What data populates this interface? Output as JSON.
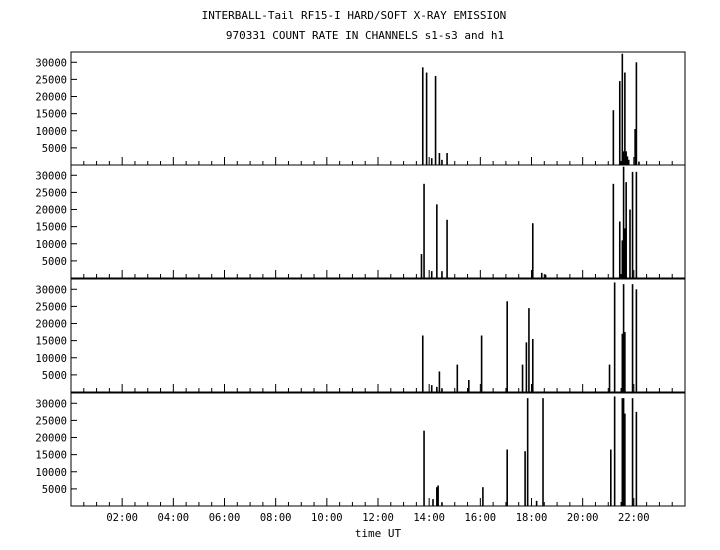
{
  "chart_data": {
    "type": "bar",
    "title": "INTERBALL-Tail RF15-I HARD/SOFT X-RAY EMISSION",
    "subtitle": "970331  COUNT RATE IN CHANNELS s1-s3 and h1",
    "xlabel": "time UT",
    "x_unit": "hours UT",
    "xlim": [
      0,
      24
    ],
    "ylim": [
      0,
      33000
    ],
    "x_ticks": [
      2,
      4,
      6,
      8,
      10,
      12,
      14,
      16,
      18,
      20,
      22
    ],
    "x_tick_labels": [
      "02:00",
      "04:00",
      "06:00",
      "08:00",
      "10:00",
      "12:00",
      "14:00",
      "16:00",
      "18:00",
      "20:00",
      "22:00"
    ],
    "y_ticks": [
      5000,
      10000,
      15000,
      20000,
      25000,
      30000
    ],
    "y_tick_labels": [
      "5000",
      "10000",
      "15000",
      "20000",
      "25000",
      "30000"
    ],
    "grid": false,
    "panels": [
      {
        "x": [
          13.75,
          13.9,
          14.1,
          14.25,
          14.4,
          14.5,
          14.7,
          21.2,
          21.45,
          21.55,
          21.6,
          21.65,
          21.7,
          21.75,
          21.8,
          22.05,
          22.1,
          22.2
        ],
        "values": [
          28500,
          27000,
          2000,
          26000,
          3500,
          1500,
          3500,
          16000,
          24500,
          32500,
          4000,
          27000,
          4000,
          2500,
          1500,
          10500,
          30000,
          1000
        ]
      },
      {
        "x": [
          13.7,
          13.8,
          14.1,
          14.3,
          14.5,
          14.7,
          18.05,
          18.4,
          18.55,
          21.2,
          21.45,
          21.55,
          21.6,
          21.65,
          21.7,
          21.85,
          21.95,
          22.1
        ],
        "values": [
          7000,
          27500,
          2000,
          21500,
          2000,
          17000,
          16000,
          1500,
          1000,
          27500,
          16500,
          11000,
          32500,
          14500,
          28000,
          20000,
          31000,
          31000
        ]
      },
      {
        "x": [
          13.75,
          14.1,
          14.3,
          14.4,
          14.5,
          15.1,
          15.55,
          16.05,
          17.05,
          17.65,
          17.8,
          17.9,
          18.05,
          21.05,
          21.25,
          21.55,
          21.6,
          21.65,
          21.95,
          22.1
        ],
        "values": [
          16500,
          2000,
          1500,
          6000,
          1000,
          8000,
          3500,
          16500,
          26500,
          8000,
          14500,
          24500,
          15500,
          8000,
          32000,
          17000,
          31500,
          17500,
          31500,
          30000
        ]
      },
      {
        "x": [
          13.8,
          14.15,
          14.3,
          14.35,
          14.5,
          16.1,
          17.05,
          17.75,
          17.85,
          18.2,
          18.45,
          21.1,
          21.25,
          21.55,
          21.6,
          21.65,
          21.95,
          22.1
        ],
        "values": [
          22000,
          2000,
          5500,
          6000,
          1000,
          5500,
          16500,
          16000,
          31500,
          1500,
          31500,
          16500,
          32000,
          31500,
          31500,
          27000,
          31500,
          27500
        ]
      }
    ]
  }
}
